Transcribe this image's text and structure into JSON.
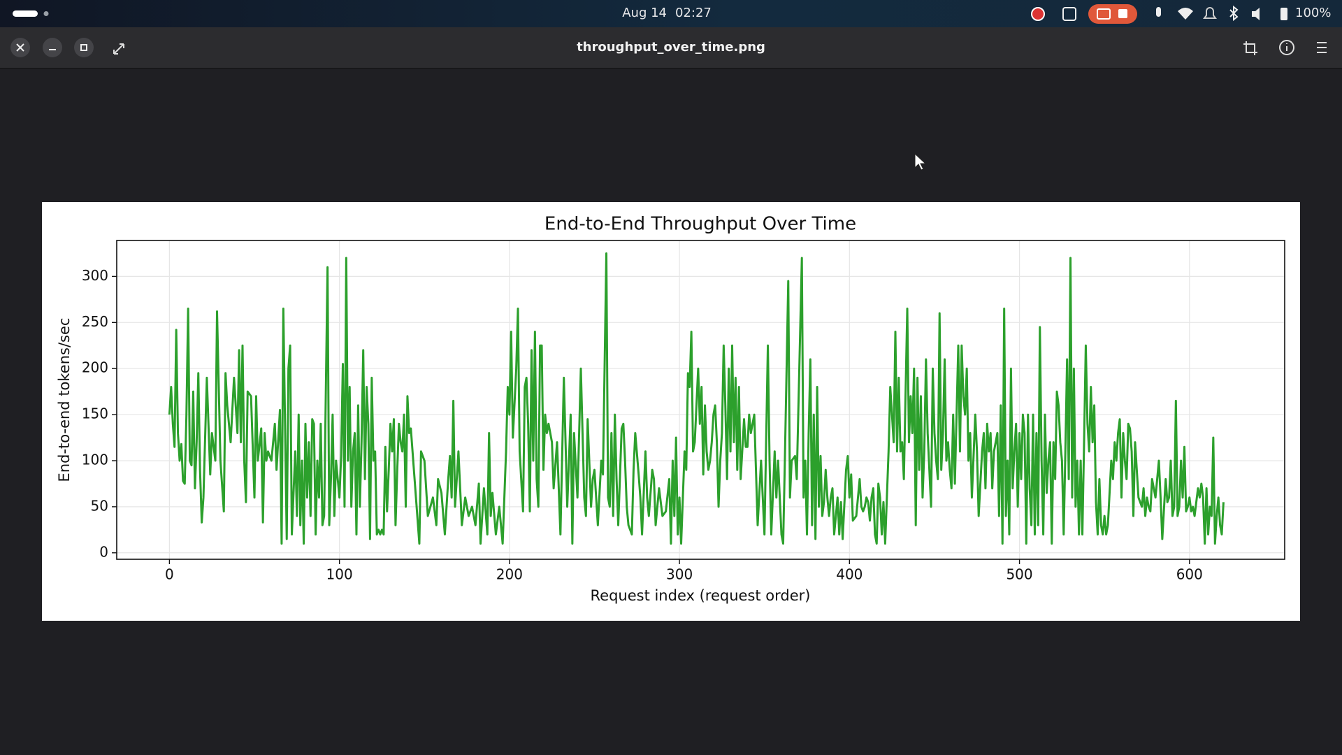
{
  "top_bar": {
    "date": "Aug 14",
    "time": "02:27",
    "battery": "100%"
  },
  "window": {
    "title": "throughput_over_time.png"
  },
  "chart_data": {
    "type": "line",
    "title": "End-to-End Throughput Over Time",
    "xlabel": "Request index (request order)",
    "ylabel": "End-to-end tokens/sec",
    "color": "#2ca02c",
    "grid": true,
    "xlim": [
      -31,
      656
    ],
    "ylim": [
      -7,
      339
    ],
    "xticks": [
      0,
      100,
      200,
      300,
      400,
      500,
      600
    ],
    "yticks": [
      0,
      50,
      100,
      150,
      200,
      250,
      300
    ],
    "x": [
      0,
      1,
      2,
      3,
      4,
      5,
      6,
      7,
      8,
      9,
      10,
      11,
      12,
      13,
      14,
      15,
      16,
      17,
      18,
      19,
      20,
      22,
      24,
      25,
      27,
      28,
      30,
      32,
      33,
      34,
      36,
      38,
      40,
      41,
      42,
      43,
      44,
      45,
      46,
      48,
      50,
      51,
      52,
      54,
      55,
      56,
      57,
      58,
      60,
      62,
      63,
      65,
      66,
      67,
      69,
      70,
      71,
      72,
      74,
      75,
      76,
      77,
      78,
      79,
      80,
      81,
      82,
      83,
      84,
      85,
      86,
      87,
      88,
      89,
      90,
      91,
      93,
      94,
      95,
      96,
      97,
      98,
      99,
      100,
      101,
      102,
      103,
      104,
      105,
      106,
      107,
      108,
      109,
      110,
      111,
      112,
      113,
      114,
      115,
      116,
      117,
      118,
      119,
      120,
      121,
      122,
      123,
      124,
      125,
      126,
      127,
      128,
      129,
      130,
      131,
      132,
      133,
      134,
      135,
      136,
      137,
      138,
      139,
      140,
      141,
      142,
      143,
      145,
      147,
      148,
      150,
      152,
      155,
      157,
      158,
      160,
      162,
      164,
      165,
      166,
      167,
      168,
      170,
      172,
      174,
      176,
      178,
      180,
      182,
      183,
      185,
      187,
      188,
      189,
      190,
      192,
      194,
      196,
      198,
      199,
      200,
      201,
      202,
      204,
      205,
      206,
      208,
      209,
      210,
      211,
      212,
      213,
      214,
      215,
      216,
      217,
      218,
      219,
      220,
      221,
      222,
      223,
      225,
      226,
      228,
      230,
      232,
      234,
      236,
      237,
      238,
      240,
      242,
      244,
      245,
      246,
      248,
      249,
      250,
      252,
      254,
      255,
      257,
      258,
      259,
      260,
      261,
      262,
      263,
      264,
      266,
      267,
      268,
      269,
      270,
      272,
      273,
      274,
      276,
      277,
      278,
      280,
      281,
      282,
      284,
      285,
      286,
      288,
      290,
      292,
      294,
      295,
      296,
      297,
      298,
      299,
      300,
      301,
      303,
      304,
      305,
      306,
      307,
      308,
      309,
      310,
      311,
      312,
      313,
      314,
      315,
      316,
      317,
      318,
      319,
      320,
      321,
      322,
      323,
      324,
      325,
      326,
      327,
      328,
      329,
      330,
      331,
      332,
      333,
      334,
      335,
      336,
      338,
      339,
      340,
      341,
      342,
      344,
      346,
      348,
      350,
      352,
      353,
      354,
      356,
      357,
      358,
      360,
      361,
      362,
      364,
      365,
      366,
      368,
      369,
      371,
      372,
      373,
      374,
      375,
      376,
      377,
      378,
      379,
      380,
      381,
      382,
      383,
      384,
      385,
      386,
      387,
      388,
      389,
      390,
      391,
      392,
      393,
      394,
      395,
      396,
      398,
      399,
      400,
      401,
      402,
      404,
      406,
      407,
      408,
      409,
      410,
      411,
      412,
      413,
      414,
      415,
      416,
      417,
      418,
      419,
      420,
      421,
      422,
      423,
      424,
      425,
      426,
      427,
      428,
      429,
      430,
      431,
      432,
      434,
      435,
      436,
      437,
      438,
      439,
      440,
      441,
      442,
      443,
      444,
      445,
      446,
      447,
      448,
      449,
      450,
      451,
      452,
      453,
      454,
      455,
      456,
      457,
      458,
      459,
      460,
      461,
      462,
      464,
      465,
      466,
      467,
      468,
      469,
      470,
      471,
      472,
      474,
      475,
      476,
      478,
      479,
      480,
      481,
      482,
      483,
      484,
      485,
      486,
      487,
      488,
      489,
      490,
      491,
      492,
      493,
      494,
      495,
      496,
      497,
      498,
      499,
      500,
      501,
      502,
      503,
      504,
      505,
      506,
      507,
      508,
      509,
      510,
      511,
      512,
      513,
      514,
      515,
      516,
      517,
      518,
      519,
      520,
      521,
      522,
      523,
      524,
      525,
      526,
      527,
      528,
      529,
      530,
      531,
      532,
      533,
      534,
      535,
      536,
      537,
      538,
      539,
      540,
      541,
      542,
      543,
      544,
      545,
      546,
      547,
      548,
      549,
      550,
      551,
      552,
      554,
      555,
      556,
      557,
      558,
      559,
      560,
      561,
      562,
      563,
      564,
      565,
      566,
      567,
      568,
      570,
      572,
      573,
      574,
      575,
      576,
      577,
      578,
      580,
      582,
      583,
      584,
      586,
      587,
      588,
      589,
      590,
      591,
      592,
      593,
      594,
      595,
      596,
      597,
      598,
      599,
      600,
      601,
      602,
      603,
      605,
      606,
      607,
      608,
      609,
      610,
      611,
      612,
      613,
      614,
      615,
      616,
      617,
      618,
      619,
      620
    ],
    "values": [
      150,
      180,
      140,
      115,
      242,
      130,
      100,
      118,
      78,
      75,
      150,
      265,
      100,
      95,
      175,
      70,
      120,
      195,
      90,
      33,
      60,
      190,
      85,
      130,
      100,
      262,
      100,
      45,
      195,
      160,
      120,
      190,
      130,
      220,
      120,
      225,
      100,
      55,
      175,
      170,
      60,
      170,
      100,
      135,
      33,
      130,
      100,
      110,
      100,
      140,
      90,
      155,
      10,
      265,
      15,
      200,
      225,
      20,
      110,
      40,
      150,
      30,
      100,
      10,
      140,
      60,
      120,
      40,
      145,
      140,
      20,
      100,
      60,
      140,
      30,
      40,
      310,
      30,
      80,
      150,
      40,
      100,
      80,
      60,
      105,
      205,
      50,
      320,
      100,
      180,
      50,
      110,
      130,
      20,
      160,
      50,
      120,
      220,
      80,
      180,
      140,
      15,
      190,
      100,
      110,
      20,
      25,
      20,
      25,
      20,
      115,
      45,
      90,
      140,
      110,
      145,
      30,
      90,
      140,
      120,
      110,
      150,
      50,
      170,
      130,
      135,
      110,
      60,
      10,
      110,
      100,
      40,
      60,
      30,
      80,
      65,
      20,
      80,
      105,
      60,
      165,
      50,
      110,
      30,
      60,
      40,
      50,
      30,
      75,
      10,
      70,
      20,
      130,
      40,
      65,
      20,
      50,
      10,
      110,
      180,
      150,
      240,
      125,
      200,
      265,
      110,
      45,
      180,
      190,
      140,
      45,
      220,
      100,
      240,
      80,
      50,
      225,
      225,
      90,
      150,
      130,
      140,
      120,
      70,
      120,
      20,
      190,
      50,
      150,
      10,
      130,
      60,
      200,
      60,
      40,
      145,
      50,
      80,
      90,
      30,
      100,
      85,
      325,
      60,
      50,
      130,
      40,
      150,
      80,
      30,
      135,
      140,
      100,
      50,
      30,
      20,
      90,
      130,
      85,
      60,
      20,
      110,
      60,
      40,
      90,
      80,
      30,
      70,
      40,
      45,
      80,
      10,
      100,
      40,
      125,
      20,
      60,
      10,
      110,
      90,
      195,
      180,
      240,
      110,
      120,
      160,
      200,
      140,
      180,
      85,
      160,
      110,
      90,
      100,
      120,
      150,
      160,
      120,
      50,
      100,
      130,
      225,
      160,
      80,
      200,
      110,
      225,
      120,
      190,
      90,
      180,
      80,
      145,
      115,
      115,
      150,
      130,
      150,
      30,
      100,
      20,
      225,
      100,
      20,
      110,
      60,
      100,
      20,
      10,
      100,
      295,
      60,
      100,
      105,
      80,
      240,
      320,
      60,
      100,
      20,
      130,
      210,
      30,
      150,
      15,
      180,
      50,
      105,
      40,
      55,
      90,
      60,
      40,
      60,
      70,
      20,
      40,
      60,
      20,
      55,
      15,
      90,
      105,
      60,
      85,
      35,
      40,
      80,
      50,
      45,
      50,
      60,
      55,
      35,
      60,
      70,
      20,
      10,
      75,
      60,
      20,
      55,
      10,
      60,
      110,
      180,
      150,
      120,
      240,
      110,
      190,
      110,
      120,
      80,
      265,
      120,
      170,
      130,
      200,
      30,
      190,
      90,
      170,
      60,
      110,
      210,
      130,
      90,
      50,
      200,
      130,
      100,
      80,
      260,
      90,
      130,
      210,
      100,
      120,
      90,
      70,
      150,
      75,
      225,
      110,
      225,
      170,
      150,
      200,
      100,
      130,
      60,
      150,
      110,
      40,
      110,
      130,
      70,
      140,
      110,
      130,
      70,
      110,
      120,
      130,
      40,
      160,
      10,
      265,
      40,
      100,
      20,
      200,
      70,
      110,
      140,
      50,
      130,
      80,
      150,
      130,
      10,
      150,
      70,
      30,
      150,
      20,
      130,
      30,
      245,
      100,
      20,
      150,
      65,
      100,
      120,
      10,
      120,
      80,
      175,
      160,
      120,
      100,
      20,
      110,
      210,
      80,
      320,
      60,
      200,
      50,
      100,
      20,
      100,
      20,
      120,
      225,
      140,
      110,
      180,
      120,
      160,
      55,
      20,
      80,
      30,
      20,
      40,
      20,
      30,
      100,
      80,
      120,
      100,
      130,
      145,
      60,
      130,
      100,
      80,
      140,
      135,
      110,
      40,
      120,
      60,
      50,
      70,
      40,
      60,
      50,
      45,
      80,
      60,
      100,
      60,
      15,
      80,
      55,
      60,
      100,
      40,
      50,
      165,
      40,
      50,
      100,
      60,
      115,
      45,
      50,
      60,
      45,
      50,
      40,
      70,
      60,
      75,
      60,
      10,
      70,
      20,
      50,
      40,
      125,
      10,
      40,
      60,
      30,
      20,
      55
    ]
  }
}
